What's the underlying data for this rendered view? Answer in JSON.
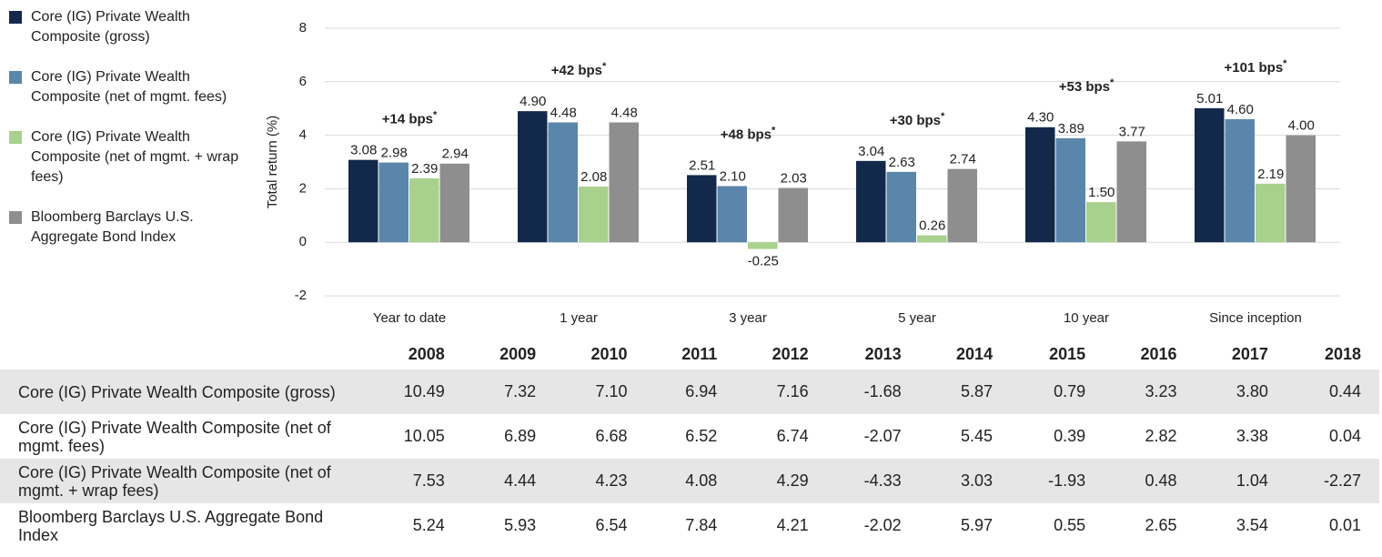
{
  "chart_data": {
    "type": "bar",
    "y_label": "Total return (%)",
    "categories": [
      "Year to date",
      "1 year",
      "3 year",
      "5 year",
      "10 year",
      "Since inception"
    ],
    "series": [
      {
        "name": "Core (IG) Private Wealth Composite (gross)",
        "color": "#13294b",
        "values": [
          3.08,
          4.9,
          2.51,
          3.04,
          4.3,
          5.01
        ],
        "value_labels": [
          "3.08",
          "4.90",
          "2.51",
          "3.04",
          "4.30",
          "5.01"
        ]
      },
      {
        "name": "Core (IG) Private Wealth Composite (net of mgmt. fees)",
        "color": "#5b86ab",
        "values": [
          2.98,
          4.48,
          2.1,
          2.63,
          3.89,
          4.6
        ],
        "value_labels": [
          "2.98",
          "4.48",
          "2.10",
          "2.63",
          "3.89",
          "4.60"
        ]
      },
      {
        "name": "Core (IG) Private Wealth Composite (net of mgmt. + wrap fees)",
        "color": "#a7d18c",
        "values": [
          2.39,
          2.08,
          -0.25,
          0.26,
          1.5,
          2.19
        ],
        "value_labels": [
          "2.39",
          "2.08",
          "-0.25",
          "0.26",
          "1.50",
          "2.19"
        ]
      },
      {
        "name": "Bloomberg Barclays U.S. Aggregate Bond Index",
        "color": "#8e8e8e",
        "values": [
          2.94,
          4.48,
          2.03,
          2.74,
          3.77,
          4.0
        ],
        "value_labels": [
          "2.94",
          "4.48",
          "2.03",
          "2.74",
          "3.77",
          "4.00"
        ]
      }
    ],
    "annotations": [
      {
        "text": "+14 bps",
        "sup": "*"
      },
      {
        "text": "+42 bps",
        "sup": "*"
      },
      {
        "text": "+48 bps",
        "sup": "*"
      },
      {
        "text": "+30 bps",
        "sup": "*"
      },
      {
        "text": "+53 bps",
        "sup": "*"
      },
      {
        "text": "+101 bps",
        "sup": "*"
      }
    ],
    "ylim": [
      -2,
      8
    ],
    "yticks": [
      -2,
      0,
      2,
      4,
      6,
      8
    ],
    "grid": true
  },
  "table": {
    "columns": [
      "2008",
      "2009",
      "2010",
      "2011",
      "2012",
      "2013",
      "2014",
      "2015",
      "2016",
      "2017",
      "2018"
    ],
    "rows": [
      [
        "Core (IG) Private Wealth Composite (gross)",
        "10.49",
        "7.32",
        "7.10",
        "6.94",
        "7.16",
        "-1.68",
        "5.87",
        "0.79",
        "3.23",
        "3.80",
        "0.44"
      ],
      [
        "Core (IG) Private Wealth Composite (net of mgmt. fees)",
        "10.05",
        "6.89",
        "6.68",
        "6.52",
        "6.74",
        "-2.07",
        "5.45",
        "0.39",
        "2.82",
        "3.38",
        "0.04"
      ],
      [
        "Core (IG) Private Wealth Composite (net of mgmt. + wrap fees)",
        "7.53",
        "4.44",
        "4.23",
        "4.08",
        "4.29",
        "-4.33",
        "3.03",
        "-1.93",
        "0.48",
        "1.04",
        "-2.27"
      ],
      [
        "Bloomberg Barclays U.S. Aggregate Bond Index",
        "5.24",
        "5.93",
        "6.54",
        "7.84",
        "4.21",
        "-2.02",
        "5.97",
        "0.55",
        "2.65",
        "3.54",
        "0.01"
      ]
    ]
  }
}
